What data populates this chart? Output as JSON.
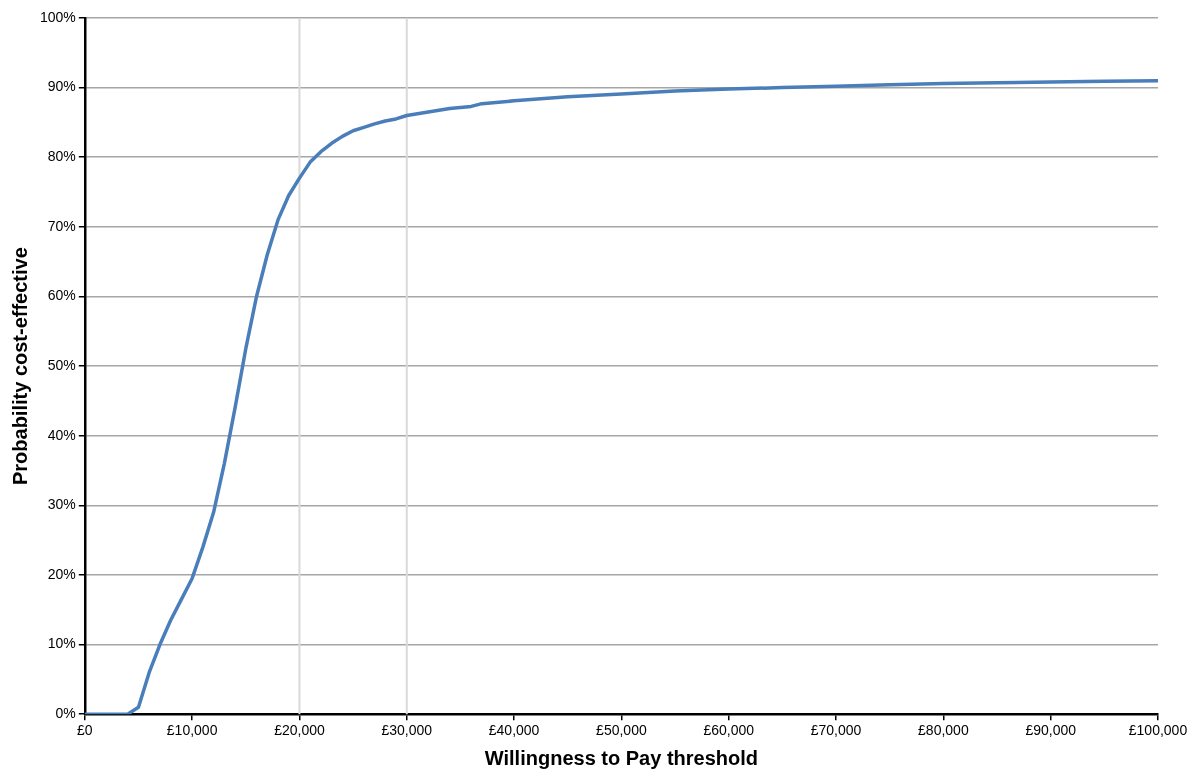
{
  "chart_data": {
    "type": "line",
    "xlabel": "Willingness to Pay threshold",
    "ylabel": "Probability cost-effective",
    "x": [
      0,
      1000,
      2000,
      3000,
      4000,
      5000,
      6000,
      7000,
      8000,
      9000,
      10000,
      11000,
      12000,
      13000,
      14000,
      15000,
      16000,
      17000,
      18000,
      19000,
      20000,
      21000,
      22000,
      23000,
      24000,
      25000,
      26000,
      27000,
      28000,
      29000,
      30000,
      32000,
      34000,
      36000,
      37000,
      40000,
      45000,
      50000,
      55000,
      60000,
      65000,
      70000,
      75000,
      80000,
      85000,
      90000,
      95000,
      100000
    ],
    "series": [
      {
        "color": "#4a7ebb",
        "values": [
          0,
          0,
          0,
          0,
          0,
          1,
          6,
          10,
          13.5,
          16.5,
          19.5,
          24,
          29,
          36,
          44,
          52.5,
          60,
          66,
          71,
          74.5,
          77,
          79.3,
          80.8,
          82,
          83,
          83.8,
          84.3,
          84.8,
          85.2,
          85.5,
          86,
          86.5,
          87,
          87.3,
          87.7,
          88.1,
          88.7,
          89.1,
          89.5,
          89.8,
          90,
          90.2,
          90.4,
          90.6,
          90.7,
          90.8,
          90.9,
          91
        ]
      }
    ],
    "xlim": [
      0,
      100000
    ],
    "xticks": [
      {
        "value": 0,
        "label": "£0"
      },
      {
        "value": 10000,
        "label": "£10,000"
      },
      {
        "value": 20000,
        "label": "£20,000"
      },
      {
        "value": 30000,
        "label": "£30,000"
      },
      {
        "value": 40000,
        "label": "£40,000"
      },
      {
        "value": 50000,
        "label": "£50,000"
      },
      {
        "value": 60000,
        "label": "£60,000"
      },
      {
        "value": 70000,
        "label": "£70,000"
      },
      {
        "value": 80000,
        "label": "£80,000"
      },
      {
        "value": 90000,
        "label": "£90,000"
      },
      {
        "value": 100000,
        "label": "£100,000"
      }
    ],
    "ylim": [
      0,
      100
    ],
    "yticks": [
      {
        "value": 0,
        "label": "0%"
      },
      {
        "value": 10,
        "label": "10%"
      },
      {
        "value": 20,
        "label": "20%"
      },
      {
        "value": 30,
        "label": "30%"
      },
      {
        "value": 40,
        "label": "40%"
      },
      {
        "value": 50,
        "label": "50%"
      },
      {
        "value": 60,
        "label": "60%"
      },
      {
        "value": 70,
        "label": "70%"
      },
      {
        "value": 80,
        "label": "80%"
      },
      {
        "value": 90,
        "label": "90%"
      },
      {
        "value": 100,
        "label": "100%"
      }
    ],
    "ref_lines": [
      {
        "axis": "x",
        "value": 20000,
        "color": "#d9d9d9"
      },
      {
        "axis": "x",
        "value": 30000,
        "color": "#d9d9d9"
      }
    ],
    "grid": "y",
    "legend": false,
    "marker": "none",
    "line_style": "solid"
  }
}
